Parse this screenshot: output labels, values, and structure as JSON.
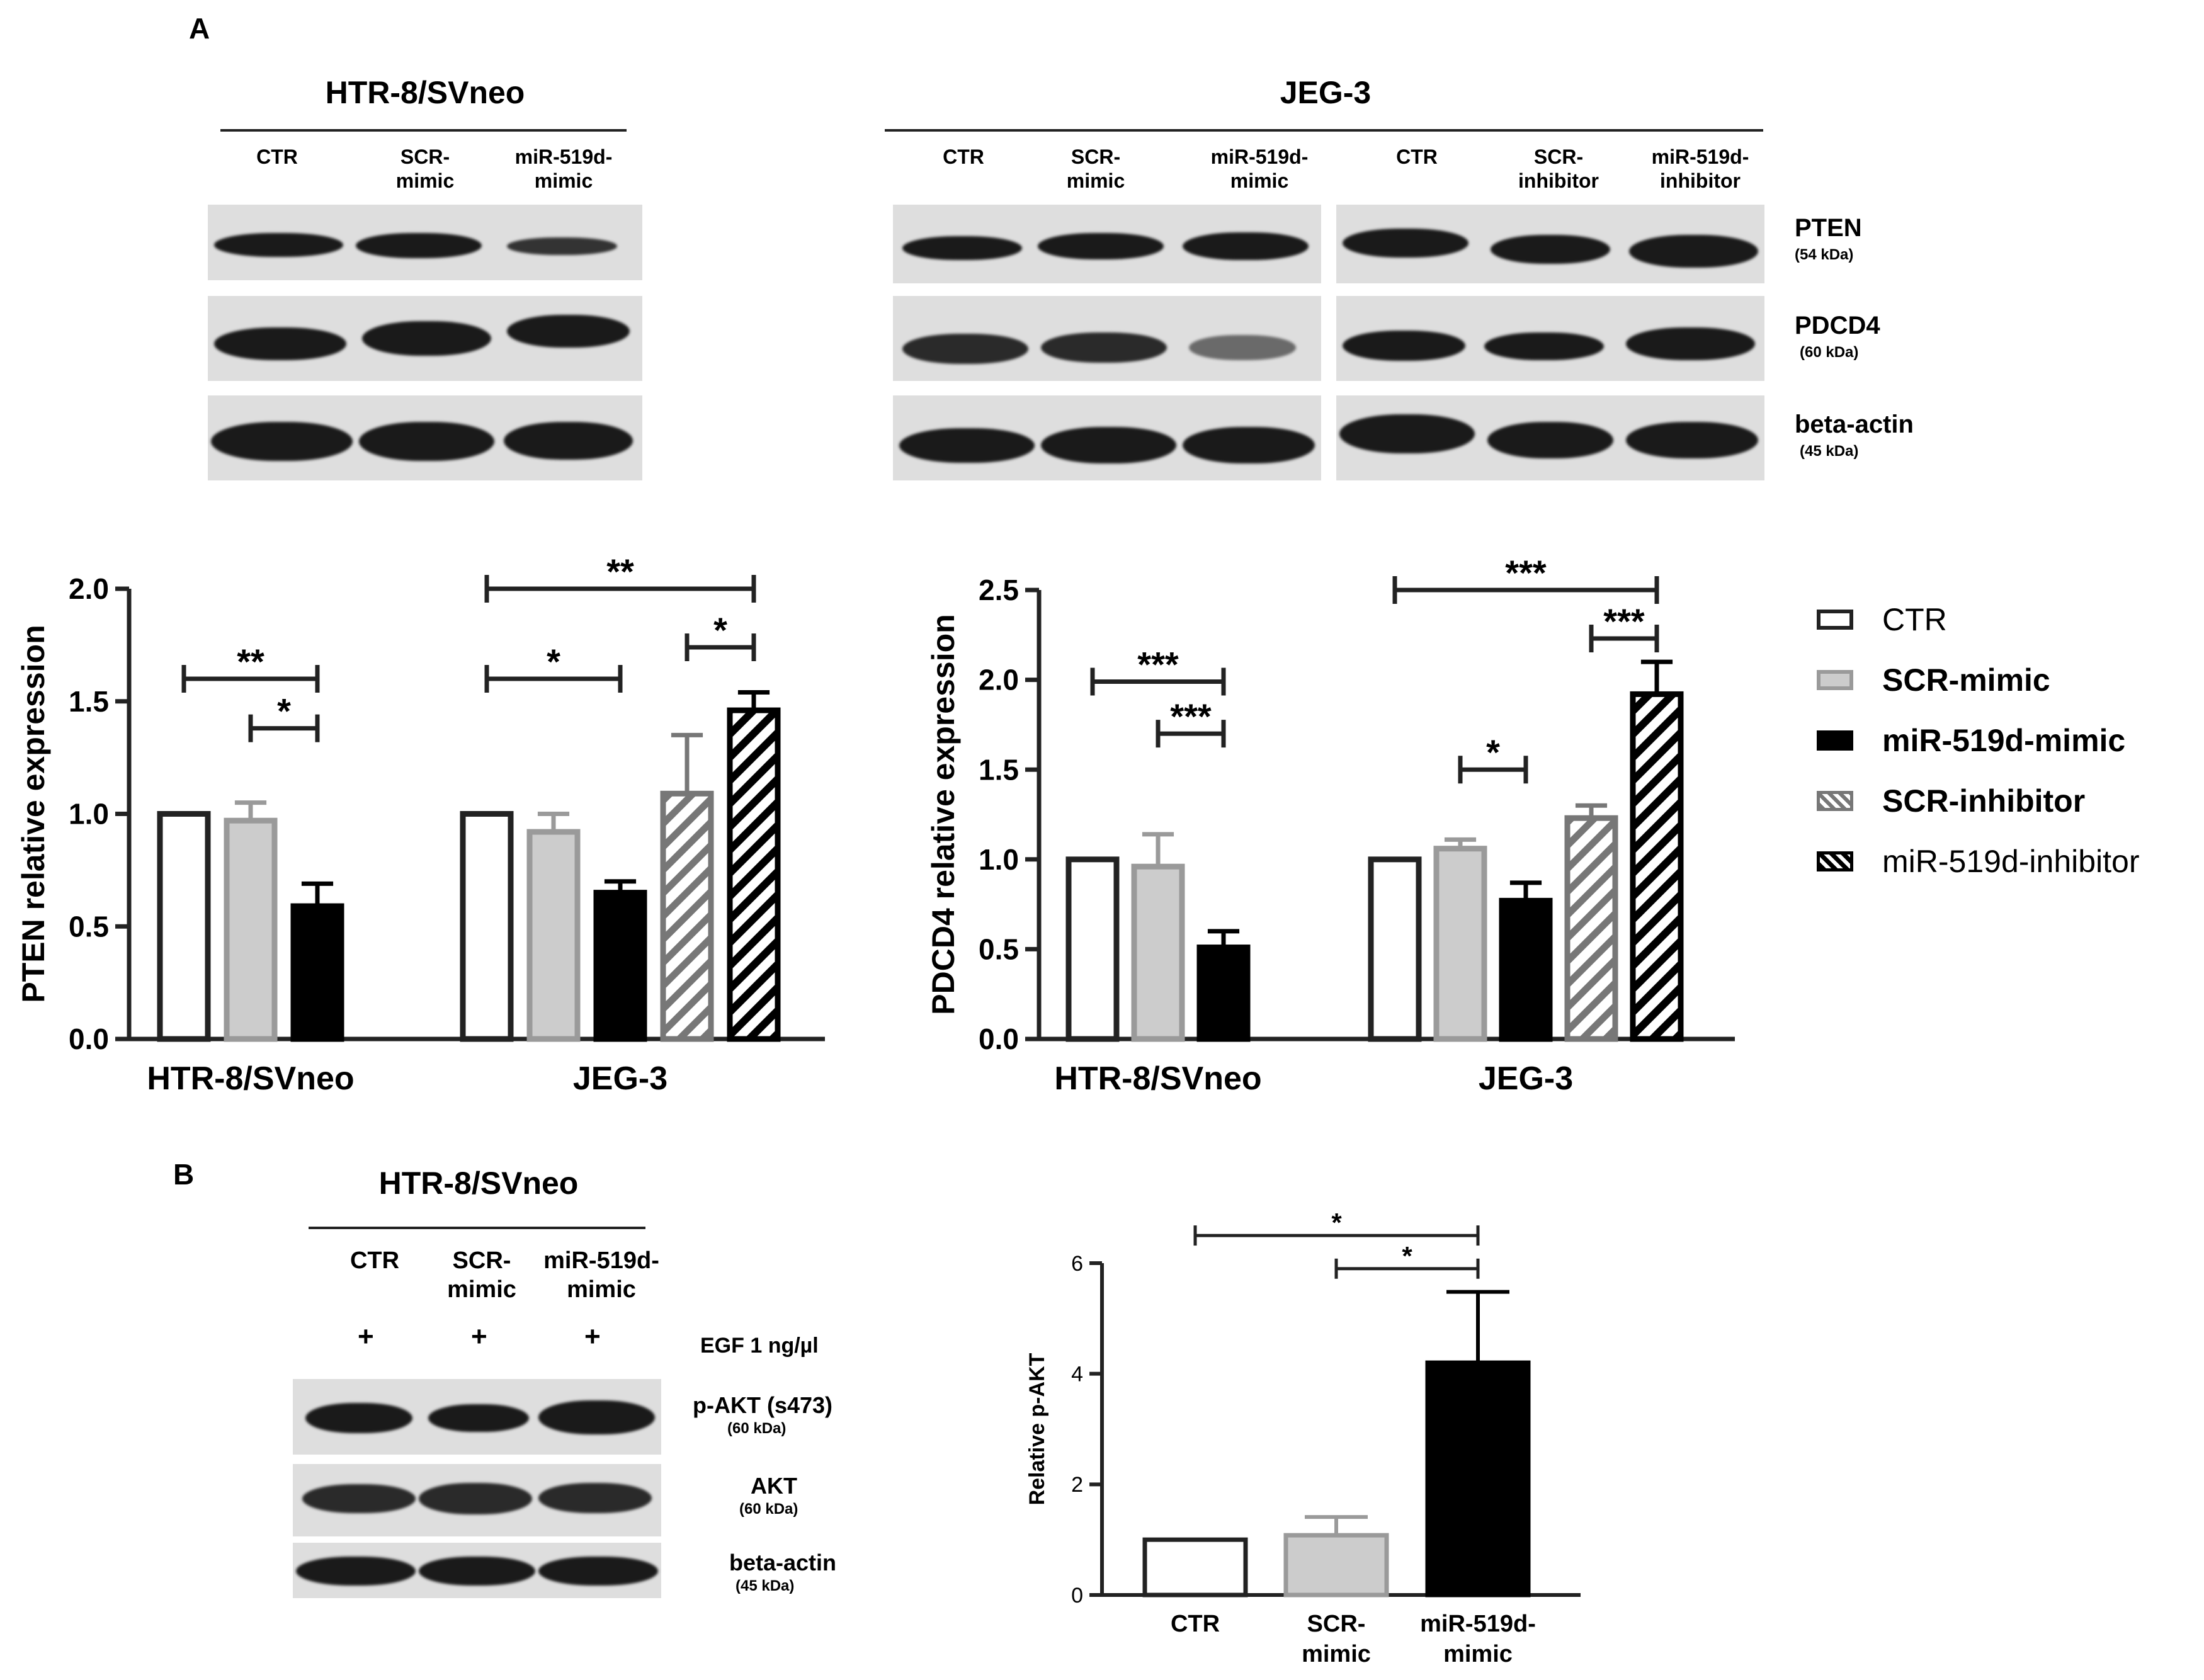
{
  "panels": {
    "a": "A",
    "b": "B"
  },
  "blot_a": {
    "htr_title": "HTR-8/SVneo",
    "jeg_title": "JEG-3",
    "htr_lanes": [
      "CTR",
      "SCR-\nmimic",
      "miR-519d-\nmimic"
    ],
    "jeg_lanes": [
      "CTR",
      "SCR-\nmimic",
      "miR-519d-\nmimic",
      "CTR",
      "SCR-\ninhibitor",
      "miR-519d-\ninhibitor"
    ],
    "proteins": [
      {
        "name": "PTEN",
        "kda": "(54 kDa)"
      },
      {
        "name": "PDCD4",
        "kda": "(60 kDa)"
      },
      {
        "name": "beta-actin",
        "kda": "(45 kDa)"
      }
    ]
  },
  "blot_b": {
    "title": "HTR-8/SVneo",
    "lanes": [
      "CTR",
      "SCR-\nmimic",
      "miR-519d-\nmimic"
    ],
    "plus": [
      "+",
      "+",
      "+"
    ],
    "egf": "EGF 1 ng/µl",
    "proteins": [
      {
        "name": "p-AKT (s473)",
        "kda": "(60 kDa)"
      },
      {
        "name": "AKT",
        "kda": "(60 kDa)"
      },
      {
        "name": "beta-actin",
        "kda": "(45 kDa)"
      }
    ]
  },
  "legend": [
    {
      "label": "CTR",
      "style": "open",
      "bold": false
    },
    {
      "label": "SCR-mimic",
      "style": "gray",
      "bold": true
    },
    {
      "label": "miR-519d-mimic",
      "style": "black",
      "bold": true
    },
    {
      "label": "SCR-inhibitor",
      "style": "gray-hatch",
      "bold": true
    },
    {
      "label": "miR-519d-inhibitor",
      "style": "black-hatch",
      "bold": false
    }
  ],
  "colors": {
    "axis": "#222222",
    "gray_fill": "#cccccc",
    "gray_edge": "#9a9a9a",
    "black": "#000000",
    "hatch_gray": "#777777"
  },
  "chart_data": [
    {
      "type": "bar",
      "ylabel": "PTEN relative expression",
      "ylim": [
        0,
        2.0
      ],
      "yticks": [
        "0.0",
        "0.5",
        "1.0",
        "1.5",
        "2.0"
      ],
      "groups": [
        {
          "label": "HTR-8/SVneo",
          "bars": [
            {
              "series": "CTR",
              "value": 1.0,
              "err": 0
            },
            {
              "series": "SCR-mimic",
              "value": 0.97,
              "err": 0.08
            },
            {
              "series": "miR-519d-mimic",
              "value": 0.59,
              "err": 0.1
            }
          ]
        },
        {
          "label": "JEG-3",
          "bars": [
            {
              "series": "CTR",
              "value": 1.0,
              "err": 0
            },
            {
              "series": "SCR-mimic",
              "value": 0.92,
              "err": 0.08
            },
            {
              "series": "miR-519d-mimic",
              "value": 0.65,
              "err": 0.05
            },
            {
              "series": "SCR-inhibitor",
              "value": 1.09,
              "err": 0.26
            },
            {
              "series": "miR-519d-inhibitor",
              "value": 1.46,
              "err": 0.08
            }
          ]
        }
      ],
      "significance": [
        {
          "from": [
            0,
            0
          ],
          "to": [
            0,
            2
          ],
          "y": 1.6,
          "label": "**"
        },
        {
          "from": [
            0,
            1
          ],
          "to": [
            0,
            2
          ],
          "y": 1.38,
          "label": "*"
        },
        {
          "from": [
            1,
            0
          ],
          "to": [
            1,
            2
          ],
          "y": 1.6,
          "label": "*"
        },
        {
          "from": [
            1,
            0
          ],
          "to": [
            1,
            4
          ],
          "y": 2.0,
          "label": "**"
        },
        {
          "from": [
            1,
            3
          ],
          "to": [
            1,
            4
          ],
          "y": 1.74,
          "label": "*"
        }
      ]
    },
    {
      "type": "bar",
      "ylabel": "PDCD4 relative expression",
      "ylim": [
        0,
        2.5
      ],
      "yticks": [
        "0.0",
        "0.5",
        "1.0",
        "1.5",
        "2.0",
        "2.5"
      ],
      "groups": [
        {
          "label": "HTR-8/SVneo",
          "bars": [
            {
              "series": "CTR",
              "value": 1.0,
              "err": 0
            },
            {
              "series": "SCR-mimic",
              "value": 0.96,
              "err": 0.18
            },
            {
              "series": "miR-519d-mimic",
              "value": 0.51,
              "err": 0.09
            }
          ]
        },
        {
          "label": "JEG-3",
          "bars": [
            {
              "series": "CTR",
              "value": 1.0,
              "err": 0
            },
            {
              "series": "SCR-mimic",
              "value": 1.06,
              "err": 0.05
            },
            {
              "series": "miR-519d-mimic",
              "value": 0.77,
              "err": 0.1
            },
            {
              "series": "SCR-inhibitor",
              "value": 1.23,
              "err": 0.07
            },
            {
              "series": "miR-519d-inhibitor",
              "value": 1.92,
              "err": 0.18
            }
          ]
        }
      ],
      "significance": [
        {
          "from": [
            0,
            0
          ],
          "to": [
            0,
            2
          ],
          "y": 1.99,
          "label": "***"
        },
        {
          "from": [
            0,
            1
          ],
          "to": [
            0,
            2
          ],
          "y": 1.7,
          "label": "***"
        },
        {
          "from": [
            1,
            1
          ],
          "to": [
            1,
            2
          ],
          "y": 1.5,
          "label": "*"
        },
        {
          "from": [
            1,
            0
          ],
          "to": [
            1,
            4
          ],
          "y": 2.5,
          "label": "***"
        },
        {
          "from": [
            1,
            3
          ],
          "to": [
            1,
            4
          ],
          "y": 2.23,
          "label": "***"
        }
      ]
    },
    {
      "type": "bar",
      "ylabel": "Relative p-AKT",
      "ylim": [
        0,
        6
      ],
      "yticks": [
        "0",
        "2",
        "4",
        "6"
      ],
      "categories": [
        "CTR",
        "SCR-\nmimic",
        "miR-519d-\nmimic"
      ],
      "bars": [
        {
          "series": "CTR",
          "value": 1.0,
          "err": 0
        },
        {
          "series": "SCR-mimic",
          "value": 1.08,
          "err": 0.33
        },
        {
          "series": "miR-519d-mimic",
          "value": 4.2,
          "err": 1.28
        }
      ],
      "significance": [
        {
          "from": 0,
          "to": 2,
          "y": 6.5,
          "label": "*"
        },
        {
          "from": 1,
          "to": 2,
          "y": 5.9,
          "label": "*"
        }
      ]
    }
  ]
}
